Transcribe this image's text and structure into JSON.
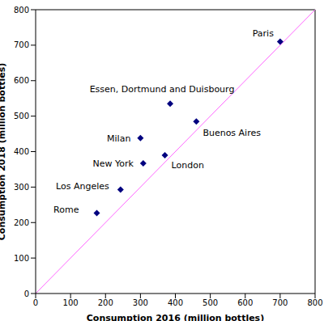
{
  "chart_data": {
    "type": "scatter",
    "x_label": "Consumption 2016 (million bottles)",
    "y_label": "Consumption 2018 (million bottles)",
    "labels": [
      "Paris",
      "Essen, Dortmund and Duisbourg",
      "Buenos Aires",
      "Milan",
      "London",
      "New York",
      "Los Angeles",
      "Rome"
    ],
    "x": [
      700,
      385,
      460,
      300,
      370,
      308,
      243,
      175
    ],
    "values": [
      710,
      535,
      485,
      438,
      390,
      367,
      293,
      227
    ],
    "color": "#00007f",
    "marker": "diamond",
    "xlim": [
      0,
      800
    ],
    "ylim": [
      0,
      800
    ],
    "xticks": [
      0,
      100,
      200,
      300,
      400,
      500,
      600,
      700,
      800
    ],
    "yticks": [
      0,
      100,
      200,
      300,
      400,
      500,
      600,
      700,
      800
    ],
    "grid": false,
    "reference_line": {
      "x": [
        0,
        800
      ],
      "y": [
        0,
        800
      ],
      "color": "#ff66ff"
    }
  }
}
